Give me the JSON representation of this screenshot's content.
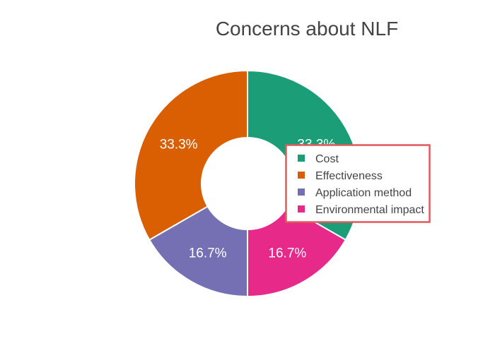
{
  "chart_data": {
    "type": "pie",
    "hole": true,
    "title": "Concerns about NLF",
    "direction": "clockwise",
    "start": "top",
    "categories": [
      "Cost",
      "Effectiveness",
      "Application method",
      "Environmental impact"
    ],
    "values": [
      33.3,
      33.3,
      16.7,
      16.7
    ],
    "labels": [
      "33.3%",
      "33.3%",
      "16.7%",
      "16.7%"
    ],
    "colors": [
      "#1b9e77",
      "#d95f02",
      "#7570b3",
      "#e7298a"
    ],
    "slice_order": [
      "Cost",
      "Environmental impact",
      "Application method",
      "Effectiveness"
    ],
    "legend": {
      "entries": [
        "Cost",
        "Effectiveness",
        "Application method",
        "Environmental impact"
      ],
      "placement": "right",
      "border_color": "#e05a5a"
    }
  }
}
